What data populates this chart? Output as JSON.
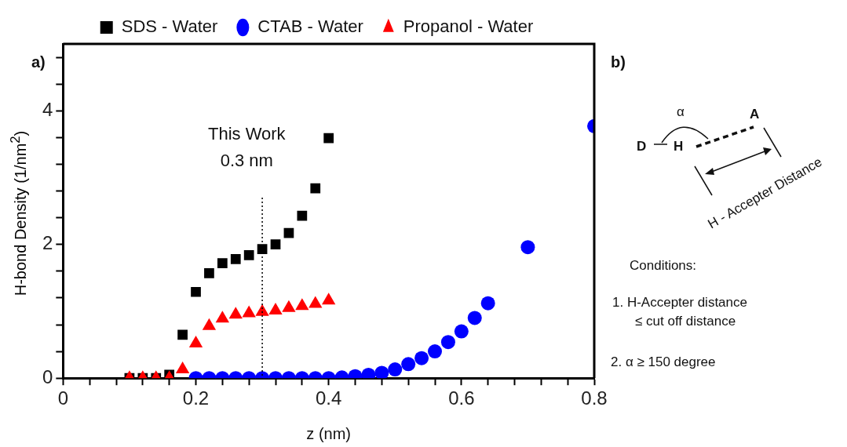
{
  "chart_data": {
    "type": "scatter",
    "xlabel": "z (nm)",
    "ylabel": "H-bond  Density (1/nm$^{2}$)",
    "xlim": [
      0,
      0.8
    ],
    "ylim": [
      0,
      5
    ],
    "xticks": [
      0,
      {
        "value": 0.04,
        "label": null
      },
      {
        "value": 0.08,
        "label": null
      },
      {
        "value": 0.12,
        "label": null
      },
      {
        "value": 0.16,
        "label": null
      },
      0.2,
      {
        "value": 0.24,
        "label": null
      },
      {
        "value": 0.28,
        "label": null
      },
      {
        "value": 0.32,
        "label": null
      },
      {
        "value": 0.36,
        "label": null
      },
      0.4,
      {
        "value": 0.44,
        "label": null
      },
      {
        "value": 0.48,
        "label": null
      },
      {
        "value": 0.52,
        "label": null
      },
      {
        "value": 0.56,
        "label": null
      },
      0.6,
      {
        "value": 0.64,
        "label": null
      },
      {
        "value": 0.68,
        "label": null
      },
      {
        "value": 0.72,
        "label": null
      },
      {
        "value": 0.76,
        "label": null
      },
      0.8
    ],
    "yticks": [
      0,
      {
        "value": 0.4,
        "label": null
      },
      {
        "value": 0.8,
        "label": null
      },
      {
        "value": 1.2,
        "label": null
      },
      {
        "value": 1.6,
        "label": null
      },
      2,
      {
        "value": 2.4,
        "label": null
      },
      {
        "value": 2.8,
        "label": null
      },
      {
        "value": 3.2,
        "label": null
      },
      {
        "value": 3.6,
        "label": null
      },
      4,
      {
        "value": 4.4,
        "label": null
      },
      {
        "value": 4.8,
        "label": null
      }
    ],
    "grid": false,
    "legend": "top",
    "ref_lines": [
      {
        "axis": "x",
        "value": 0.3,
        "line_style": "dotted",
        "color": "#000000"
      }
    ],
    "series": [
      {
        "name": "SDS - Water",
        "color": "#000000",
        "marker": "square",
        "x": [
          0.1,
          0.12,
          0.14,
          0.16,
          0.18,
          0.2,
          0.22,
          0.24,
          0.26,
          0.28,
          0.3,
          0.32,
          0.34,
          0.36,
          0.38,
          0.4
        ],
        "values": [
          0,
          0,
          0,
          0.05,
          0.65,
          1.29,
          1.57,
          1.72,
          1.78,
          1.84,
          1.93,
          2.0,
          2.17,
          2.43,
          2.84,
          3.59
        ]
      },
      {
        "name": "CTAB - Water",
        "color": "#0000ff",
        "marker": "circle",
        "x": [
          0.2,
          0.22,
          0.24,
          0.26,
          0.28,
          0.3,
          0.32,
          0.34,
          0.36,
          0.38,
          0.4,
          0.42,
          0.44,
          0.46,
          0.48,
          0.5,
          0.52,
          0.54,
          0.56,
          0.58,
          0.6,
          0.62,
          0.64,
          0.7,
          0.8
        ],
        "values": [
          0,
          0,
          0,
          0,
          0,
          0,
          0,
          0,
          0,
          0,
          0,
          0.01,
          0.03,
          0.05,
          0.08,
          0.13,
          0.21,
          0.3,
          0.4,
          0.54,
          0.7,
          0.9,
          1.12,
          1.96,
          3.77
        ]
      },
      {
        "name": "Propanol - Water",
        "color": "#ff0000",
        "marker": "triangle",
        "x": [
          0.1,
          0.12,
          0.14,
          0.16,
          0.18,
          0.2,
          0.22,
          0.24,
          0.26,
          0.28,
          0.3,
          0.32,
          0.34,
          0.36,
          0.38,
          0.4
        ],
        "values": [
          0,
          0,
          0,
          0,
          0.13,
          0.52,
          0.78,
          0.89,
          0.95,
          0.97,
          0.99,
          1.01,
          1.05,
          1.08,
          1.11,
          1.16
        ]
      }
    ],
    "annotations": [
      "a)",
      "This Work\n0.3 nm",
      "b)",
      "D",
      "H",
      "A",
      "α",
      "H - Accepter Distance",
      "Conditions:",
      "1.  H-Accepter distance",
      "≤ cut off distance",
      "2. α ≥ 150 degree"
    ]
  }
}
